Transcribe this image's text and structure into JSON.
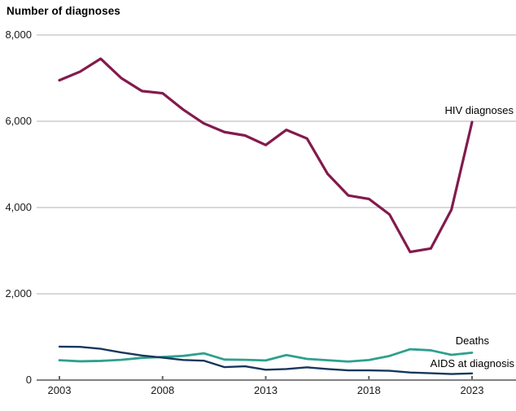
{
  "header": {
    "title": "Number of diagnoses"
  },
  "chart_data": {
    "type": "line",
    "title": "Number of diagnoses",
    "xlabel": "",
    "ylabel": "Number of diagnoses",
    "xlim": [
      2003,
      2023
    ],
    "ylim": [
      0,
      8000
    ],
    "grid": "horizontal",
    "legend_position": "inline-annotations",
    "x": [
      2003,
      2004,
      2005,
      2006,
      2007,
      2008,
      2009,
      2010,
      2011,
      2012,
      2013,
      2014,
      2015,
      2016,
      2017,
      2018,
      2019,
      2020,
      2021,
      2022,
      2023
    ],
    "x_ticks": [
      2003,
      2008,
      2013,
      2018,
      2023
    ],
    "x_tick_labels": [
      "2003",
      "2008",
      "2013",
      "2018",
      "2023"
    ],
    "y_ticks": [
      0,
      2000,
      4000,
      6000,
      8000
    ],
    "y_tick_labels": [
      "0",
      "2,000",
      "4,000",
      "6,000",
      "8,000"
    ],
    "series": [
      {
        "name": "HIV diagnoses",
        "color": "#831a4d",
        "stroke_width": 3.2,
        "values": [
          6950,
          7150,
          7450,
          7000,
          6700,
          6650,
          6270,
          5950,
          5750,
          5670,
          5450,
          5800,
          5600,
          4780,
          4280,
          4200,
          3840,
          2970,
          3050,
          3950,
          5980
        ]
      },
      {
        "name": "Deaths",
        "color": "#2ea08d",
        "stroke_width": 2.8,
        "values": [
          460,
          435,
          445,
          470,
          515,
          535,
          560,
          620,
          475,
          470,
          455,
          580,
          490,
          460,
          430,
          465,
          560,
          715,
          690,
          585,
          635
        ]
      },
      {
        "name": "AIDS at diagnosis",
        "color": "#17375d",
        "stroke_width": 2.4,
        "values": [
          775,
          770,
          725,
          640,
          570,
          520,
          465,
          450,
          300,
          320,
          240,
          255,
          295,
          255,
          225,
          225,
          215,
          175,
          160,
          140,
          155
        ]
      }
    ],
    "colors": {
      "gridline": "#cccccc",
      "axis_line": "#808080",
      "tick_mark": "#666666",
      "text": "#1a1a1a"
    }
  }
}
